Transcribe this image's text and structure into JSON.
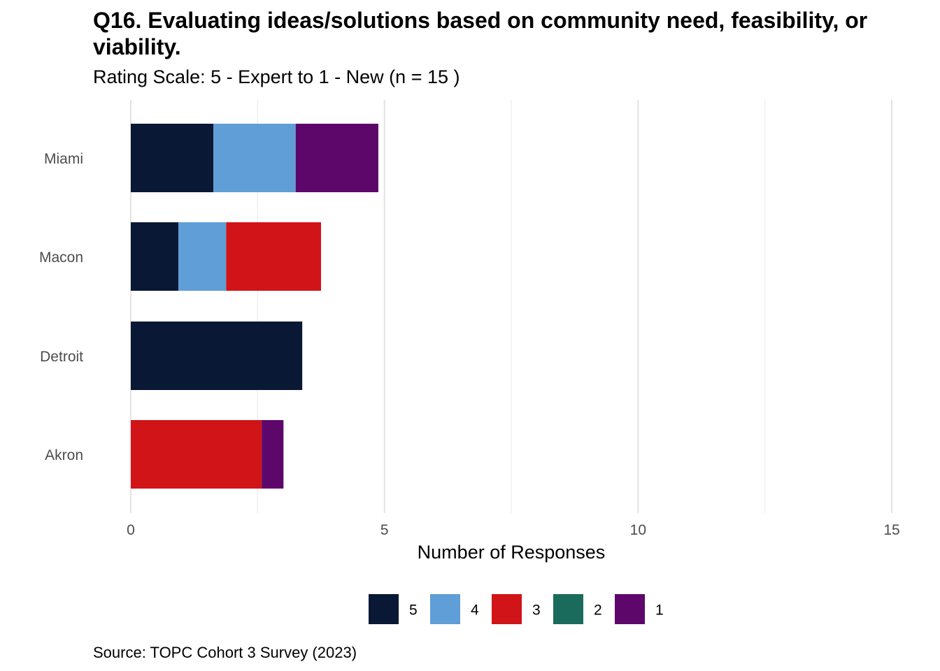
{
  "chart_data": {
    "type": "bar",
    "orientation": "horizontal",
    "stacked": true,
    "title": "Q16. Evaluating ideas/solutions based on community need, feasibility, or viability.",
    "subtitle": "Rating Scale: 5 - Expert to 1 - New (n = 15 )",
    "caption": "Source: TOPC Cohort 3 Survey (2023)",
    "xlabel": "Number of Responses",
    "ylabel": "",
    "categories": [
      "Miami",
      "Macon",
      "Detroit",
      "Akron"
    ],
    "xlim": [
      0,
      15
    ],
    "xticks": [
      0,
      5,
      10,
      15
    ],
    "xtick_labels": [
      "0",
      "5",
      "10",
      "15"
    ],
    "grid": true,
    "legend_position": "bottom",
    "series": [
      {
        "name": "5",
        "color": "#091835",
        "values": [
          1.63,
          0.94,
          3.38,
          0
        ]
      },
      {
        "name": "4",
        "color": "#5f9ed6",
        "values": [
          1.62,
          0.94,
          0,
          0
        ]
      },
      {
        "name": "3",
        "color": "#d11418",
        "values": [
          0,
          1.87,
          0,
          2.58
        ]
      },
      {
        "name": "2",
        "color": "#1a6b5c",
        "values": [
          0,
          0,
          0,
          0
        ]
      },
      {
        "name": "1",
        "color": "#5e076b",
        "values": [
          1.63,
          0,
          0,
          0.43
        ]
      }
    ]
  }
}
